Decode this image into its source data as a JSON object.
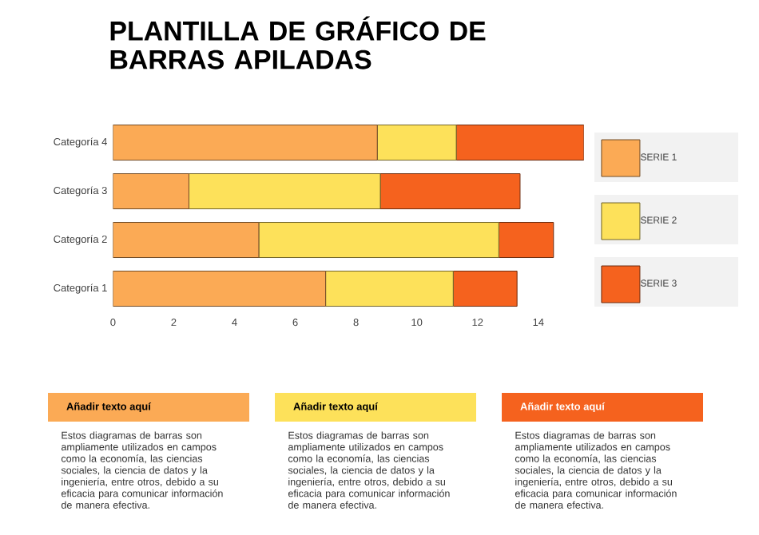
{
  "chart_data": {
    "type": "bar",
    "orientation": "horizontal",
    "stacked": true,
    "title": "PLANTILLA DE GRÁFICO DE BARRAS APILADAS",
    "categories": [
      "Categoría 4",
      "Categoría 3",
      "Categoría 2",
      "Categoría 1"
    ],
    "series": [
      {
        "name": "SERIE 1",
        "color": "#fbaa55",
        "values": [
          8.7,
          2.5,
          4.8,
          7.0
        ]
      },
      {
        "name": "SERIE 2",
        "color": "#fde15a",
        "values": [
          2.6,
          6.3,
          7.9,
          4.2
        ]
      },
      {
        "name": "SERIE 3",
        "color": "#f5621e",
        "values": [
          4.2,
          4.6,
          1.8,
          2.1
        ]
      }
    ],
    "xlim": [
      0,
      15.5
    ],
    "xticks": [
      0,
      2,
      4,
      6,
      8,
      10,
      12,
      14
    ],
    "grid": false,
    "legend": "right",
    "annotations": [
      "Añadir texto aquí",
      "Estos diagramas de barras son ampliamente utilizados en campos como la economía, las ciencias sociales, la ciencia de datos y la ingeniería, entre otros, debido a su eficacia para comunicar información de manera efectiva.",
      "Añadir texto aquí",
      "Estos diagramas de barras son ampliamente utilizados en campos como la economía, las ciencias sociales, la ciencia de datos y la ingeniería, entre otros, debido a su eficacia para comunicar información de manera efectiva.",
      "Añadir texto aquí",
      "Estos diagramas de barras son ampliamente utilizados en campos como la economía, las ciencias sociales, la ciencia de datos y la ingeniería, entre otros, debido a su eficacia para comunicar información de manera efectiva."
    ]
  }
}
